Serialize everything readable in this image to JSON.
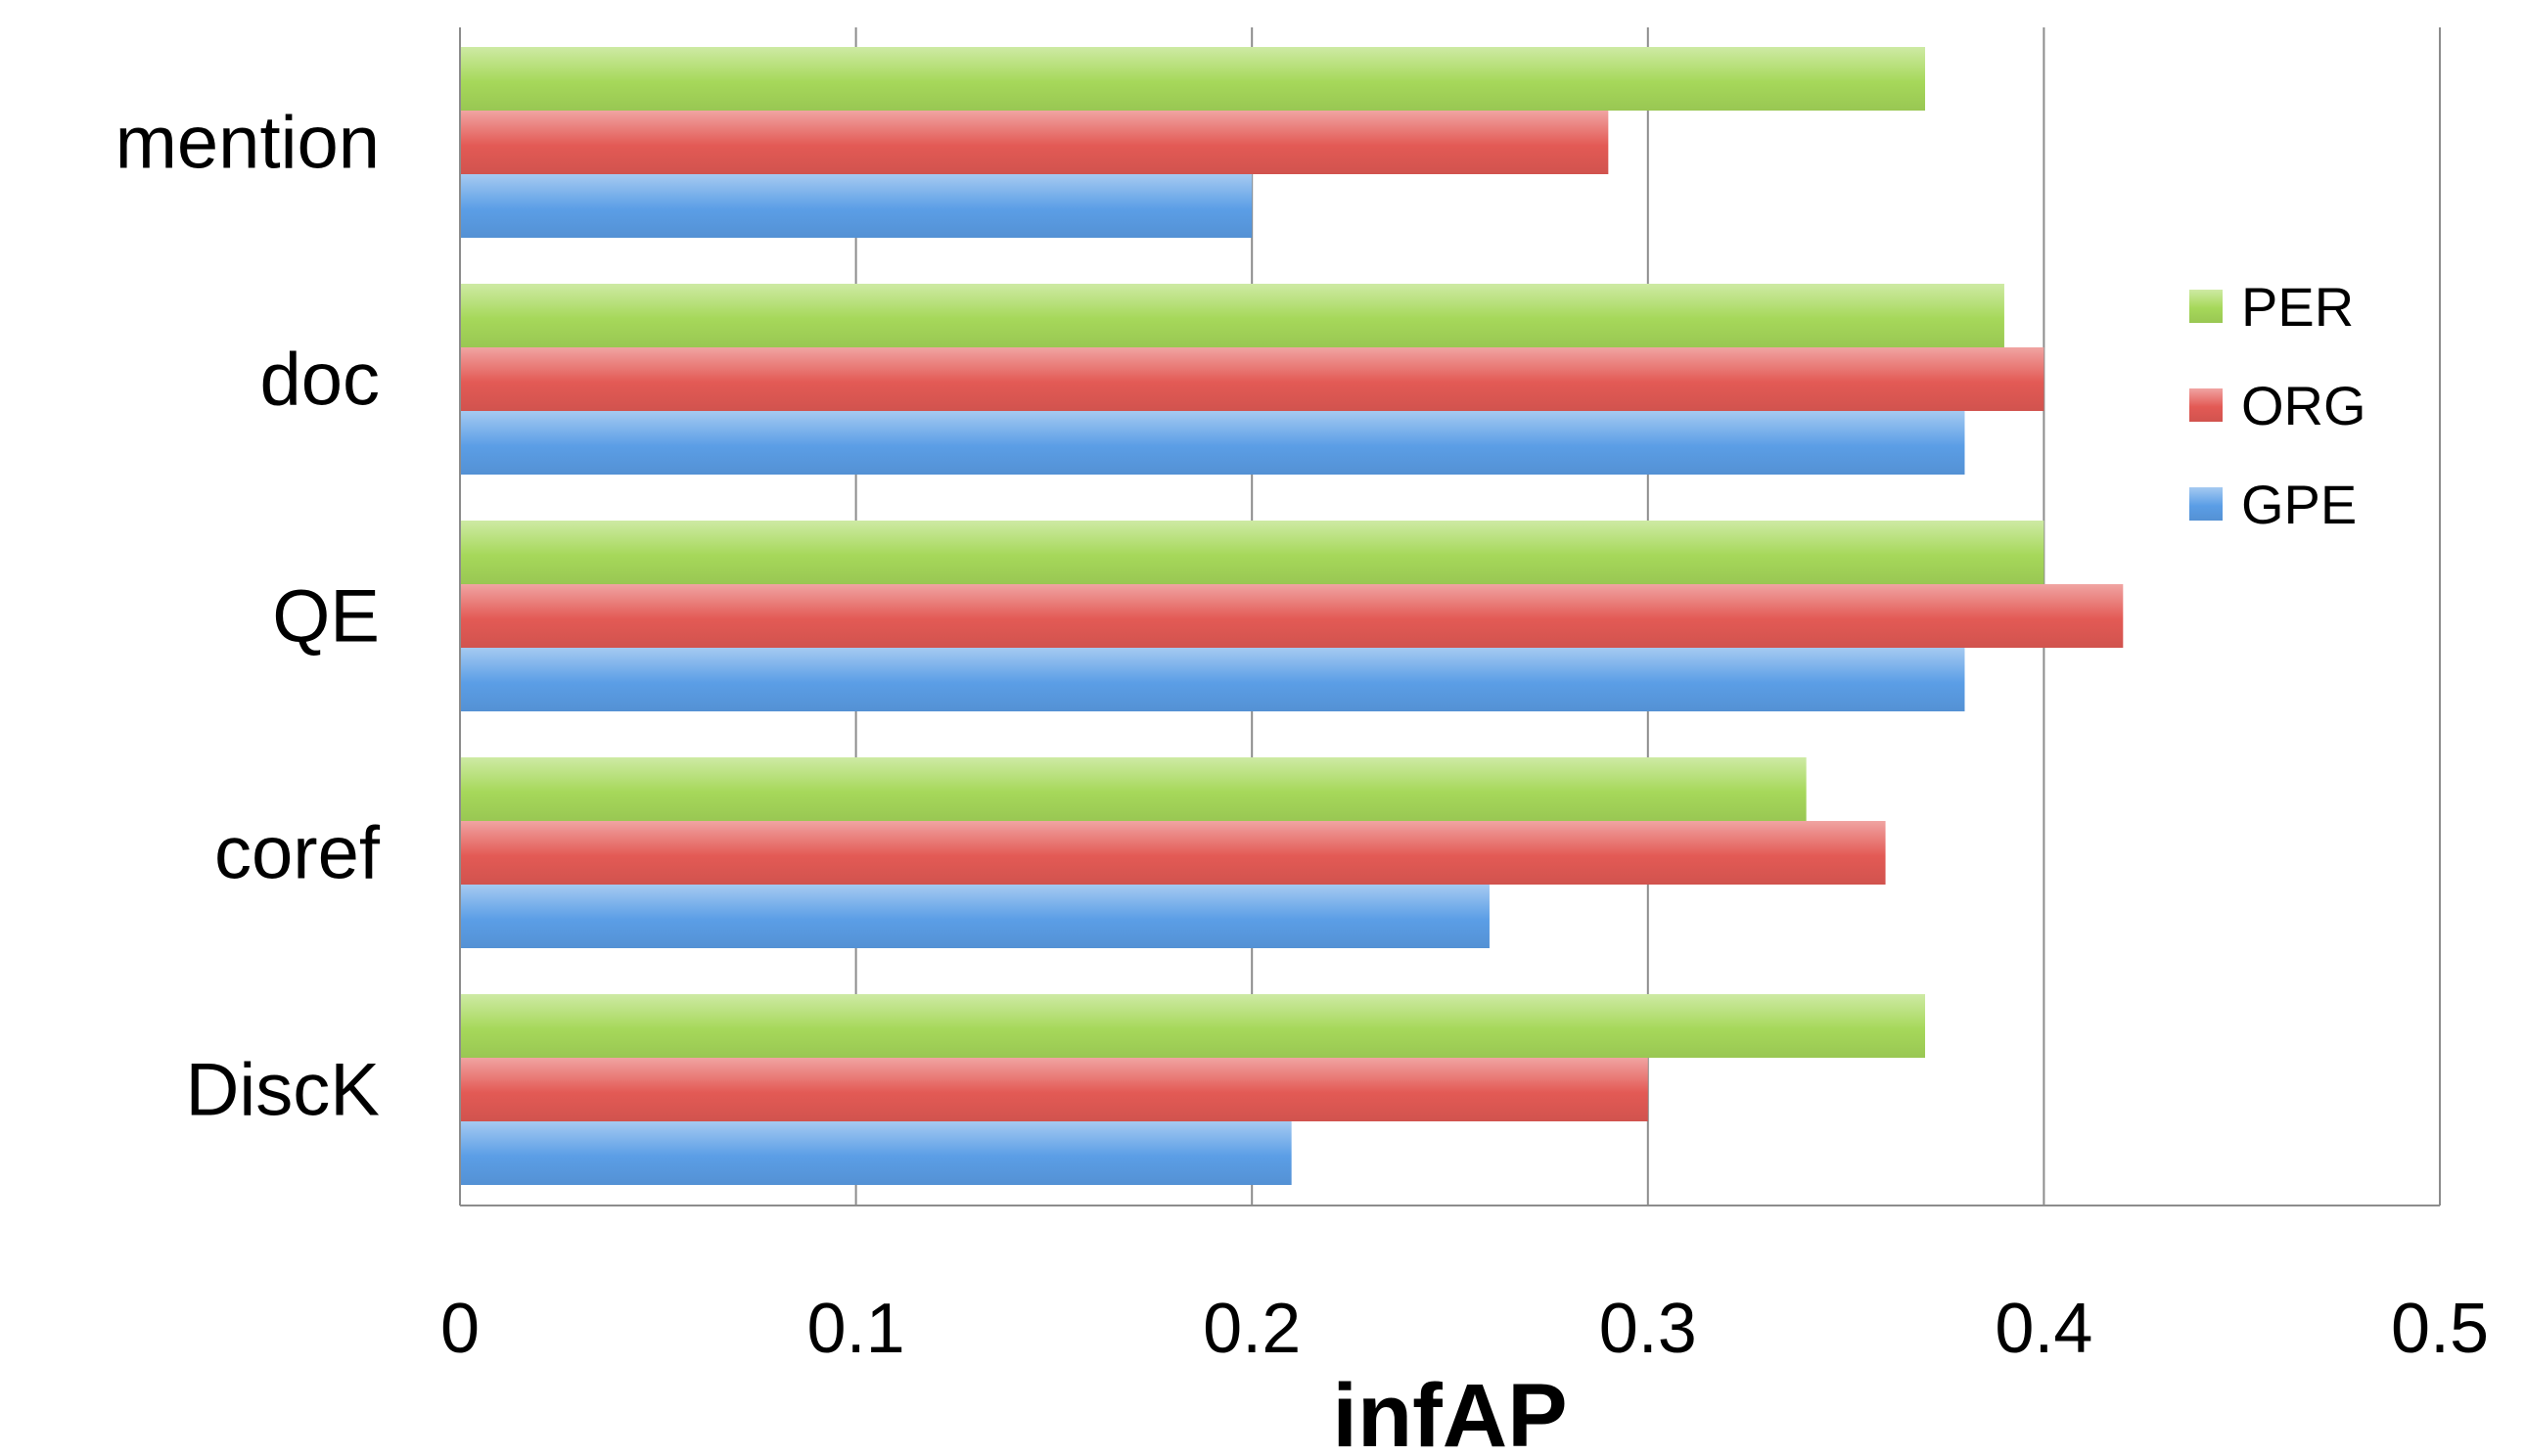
{
  "chart_data": {
    "type": "bar",
    "orientation": "horizontal",
    "categories": [
      "mention",
      "doc",
      "QE",
      "coref",
      "DiscK"
    ],
    "series": [
      {
        "name": "PER",
        "color": "#a6d85a",
        "values": [
          0.37,
          0.39,
          0.4,
          0.34,
          0.37
        ]
      },
      {
        "name": "ORG",
        "color": "#e35a55",
        "values": [
          0.29,
          0.4,
          0.42,
          0.36,
          0.3
        ]
      },
      {
        "name": "GPE",
        "color": "#5b9ee6",
        "values": [
          0.2,
          0.38,
          0.38,
          0.26,
          0.21
        ]
      }
    ],
    "xlabel": "infAP",
    "ylabel": "",
    "title": "",
    "xlim": [
      0,
      0.5
    ],
    "xticks": [
      "0",
      "0.1",
      "0.2",
      "0.3",
      "0.4",
      "0.5"
    ],
    "grid": "vertical",
    "legend": "right"
  }
}
